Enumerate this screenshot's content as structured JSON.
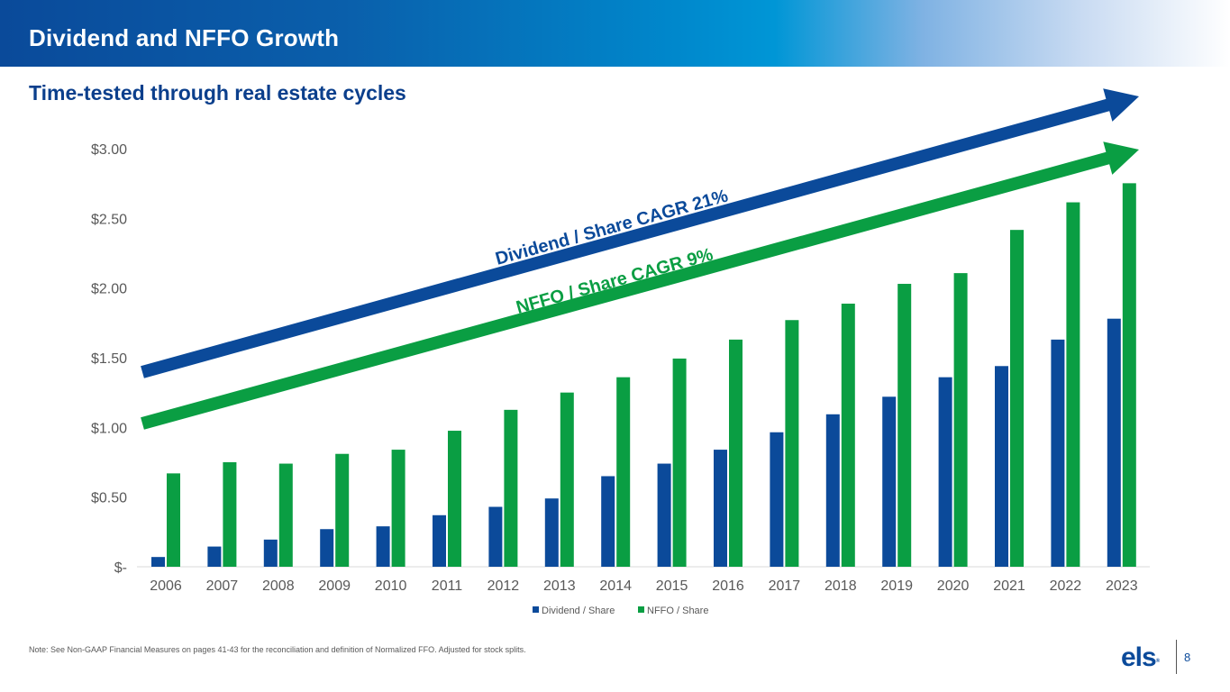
{
  "header": {
    "title": "Dividend and NFFO Growth",
    "subtitle": "Time-tested through real estate cycles"
  },
  "colors": {
    "dividend": "#0b4a9a",
    "nffo": "#0a9e43",
    "axis_text": "#595959",
    "title_blue": "#0b3f8c"
  },
  "chart_data": {
    "type": "bar",
    "title": "",
    "xlabel": "",
    "ylabel": "",
    "categories": [
      "2006",
      "2007",
      "2008",
      "2009",
      "2010",
      "2011",
      "2012",
      "2013",
      "2014",
      "2015",
      "2016",
      "2017",
      "2018",
      "2019",
      "2020",
      "2021",
      "2022",
      "2023"
    ],
    "series": [
      {
        "name": "Dividend / Share",
        "color": "#0b4a9a",
        "values": [
          0.07,
          0.145,
          0.195,
          0.27,
          0.29,
          0.37,
          0.43,
          0.49,
          0.65,
          0.74,
          0.84,
          0.965,
          1.094,
          1.22,
          1.36,
          1.44,
          1.63,
          1.78
        ]
      },
      {
        "name": "NFFO / Share",
        "color": "#0a9e43",
        "values": [
          0.67,
          0.75,
          0.74,
          0.81,
          0.84,
          0.976,
          1.126,
          1.25,
          1.36,
          1.494,
          1.63,
          1.77,
          1.888,
          2.03,
          2.107,
          2.417,
          2.615,
          2.752
        ]
      }
    ],
    "ylim": [
      0,
      3.0
    ],
    "yticks": [
      0,
      0.5,
      1.0,
      1.5,
      2.0,
      2.5,
      3.0
    ],
    "ytick_labels": [
      "$-",
      "$0.50",
      "$1.00",
      "$1.50",
      "$2.00",
      "$2.50",
      "$3.00"
    ],
    "grid": false,
    "legend": {
      "position": "bottom-center",
      "entries": [
        "Dividend / Share",
        "NFFO / Share"
      ]
    },
    "annotations": [
      {
        "text": "Dividend / Share CAGR 21%",
        "series": "Dividend / Share",
        "shape": "trend-arrow"
      },
      {
        "text": "NFFO / Share CAGR 9%",
        "series": "NFFO / Share",
        "shape": "trend-arrow"
      }
    ]
  },
  "footer": {
    "note": "Note: See Non-GAAP Financial Measures on pages 41-43 for the reconciliation and definition of Normalized FFO. Adjusted for stock splits.",
    "logo_text": "els",
    "logo_mark": "®",
    "page_number": "8"
  }
}
